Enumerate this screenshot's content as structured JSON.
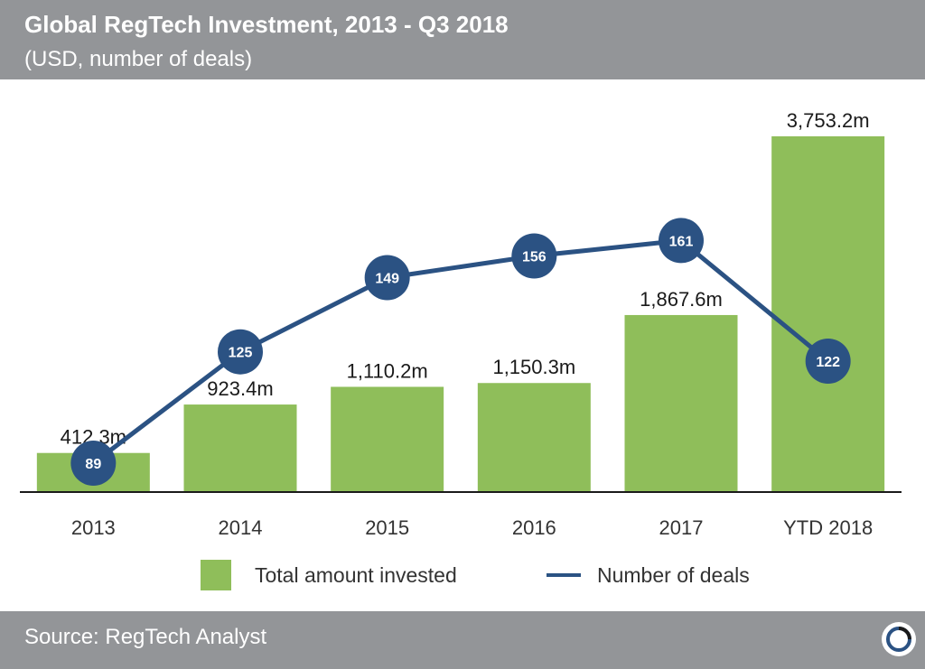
{
  "header": {
    "title": "Global RegTech Investment, 2013 - Q3 2018",
    "subtitle": "(USD, number of deals)"
  },
  "footer": {
    "source": "Source: RegTech Analyst",
    "logo_icon": "ring-logo-icon"
  },
  "colors": {
    "bar": "#8fbe5a",
    "line": "#2b5283",
    "header_bg": "#939598",
    "axis": "#1a1a1a"
  },
  "legend": {
    "bar_label": "Total amount invested",
    "line_label": "Number of deals"
  },
  "chart_data": {
    "type": "bar",
    "title": "Global RegTech Investment, 2013 - Q3 2018",
    "subtitle": "(USD, number of deals)",
    "categories": [
      "2013",
      "2014",
      "2015",
      "2016",
      "2017",
      "YTD 2018"
    ],
    "series": [
      {
        "name": "Total amount invested",
        "type": "bar",
        "unit": "USD m",
        "values": [
          412.3,
          923.4,
          1110.2,
          1150.3,
          1867.6,
          3753.2
        ],
        "labels": [
          "412.3m",
          "923.4m",
          "1,110.2m",
          "1,150.3m",
          "1,867.6m",
          "3,753.2m"
        ]
      },
      {
        "name": "Number of deals",
        "type": "line",
        "values": [
          89,
          125,
          149,
          156,
          161,
          122
        ],
        "labels": [
          "89",
          "125",
          "149",
          "156",
          "161",
          "122"
        ]
      }
    ],
    "bar_ylim": [
      0,
      3753.2
    ],
    "line_ylim": [
      0,
      200
    ],
    "legend_position": "bottom",
    "grid": false
  }
}
